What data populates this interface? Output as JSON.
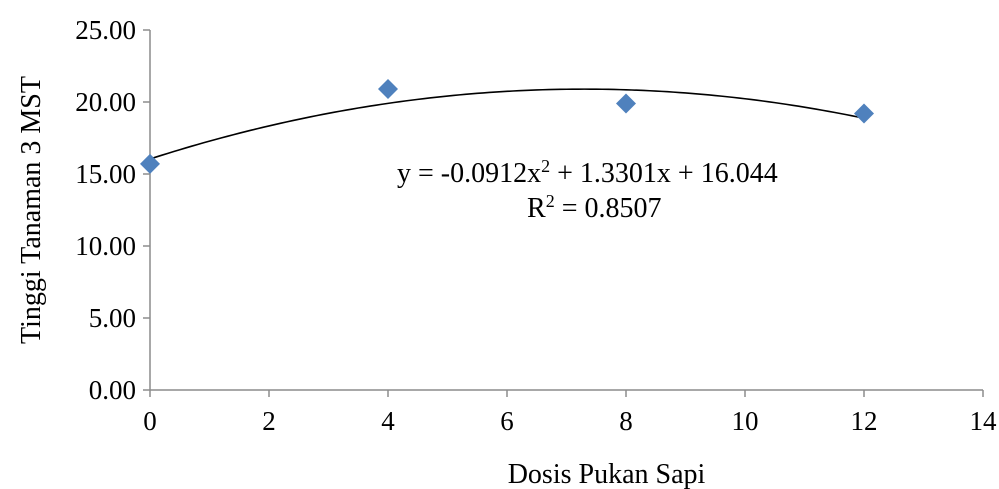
{
  "chart_data": {
    "type": "scatter",
    "title": "",
    "xlabel": "Dosis Pukan Sapi",
    "ylabel": "Tinggi Tanaman 3 MST",
    "xlim": [
      0,
      14
    ],
    "ylim": [
      0,
      25
    ],
    "x_ticks": [
      0,
      2,
      4,
      6,
      8,
      10,
      12,
      14
    ],
    "x_tick_labels": [
      "0",
      "2",
      "4",
      "6",
      "8",
      "10",
      "12",
      "14"
    ],
    "y_ticks": [
      0,
      5,
      10,
      15,
      20,
      25
    ],
    "y_tick_labels": [
      "0.00",
      "5.00",
      "10.00",
      "15.00",
      "20.00",
      "25.00"
    ],
    "grid": false,
    "legend": "none",
    "series": [
      {
        "marker": "diamond",
        "color": "#4f81bd",
        "x": [
          0,
          4,
          8,
          12
        ],
        "y": [
          15.7,
          20.9,
          19.9,
          19.2
        ]
      }
    ],
    "trendline": {
      "type": "polynomial",
      "order": 2,
      "coefficients": [
        -0.0912,
        1.3301,
        16.044
      ],
      "x_range": [
        0,
        12
      ],
      "color": "#000000"
    },
    "annotations": {
      "equation_main": "y = -0.0912x",
      "equation_sup": "2",
      "equation_rest": " + 1.3301x + 16.044",
      "r2_main": "R",
      "r2_sup": "2",
      "r2_rest": " = 0.8507"
    }
  }
}
